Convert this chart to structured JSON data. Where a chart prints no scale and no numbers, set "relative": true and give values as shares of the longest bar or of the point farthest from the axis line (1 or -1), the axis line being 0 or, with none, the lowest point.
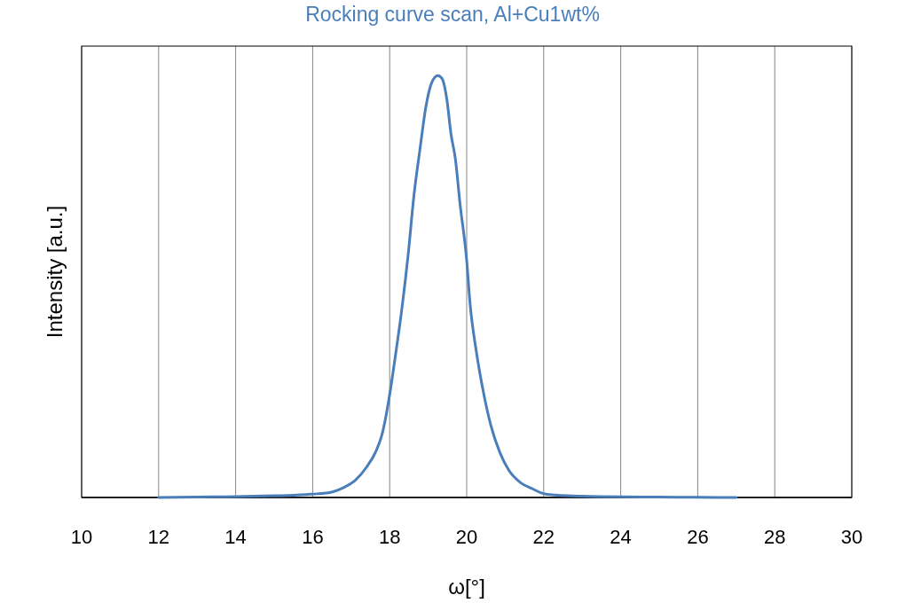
{
  "chart_data": {
    "type": "line",
    "title": "Rocking curve scan, Al+Cu1wt%",
    "xlabel": "ω[°]",
    "ylabel": "Intensity [a.u.]",
    "relative": true,
    "x": [
      12,
      13,
      14,
      15,
      15.5,
      16,
      16.4,
      16.79,
      17.1,
      17.4,
      17.63,
      17.8,
      18,
      18.13,
      18.33,
      18.48,
      18.63,
      18.79,
      18.94,
      19.09,
      19.25,
      19.36,
      19.49,
      19.59,
      19.71,
      19.82,
      20,
      20.09,
      20.24,
      20.44,
      20.63,
      20.86,
      21.09,
      21.4,
      21.7,
      22,
      22.3,
      22.63,
      23,
      24,
      25,
      26,
      27
    ],
    "series": [
      {
        "color": "#4a7ebb",
        "values": [
          0,
          0.001,
          0.002,
          0.004,
          0.005,
          0.008,
          0.011,
          0.023,
          0.04,
          0.072,
          0.107,
          0.149,
          0.244,
          0.324,
          0.457,
          0.576,
          0.716,
          0.828,
          0.926,
          0.983,
          1,
          0.993,
          0.94,
          0.863,
          0.8,
          0.702,
          0.562,
          0.457,
          0.352,
          0.247,
          0.17,
          0.107,
          0.065,
          0.035,
          0.021,
          0.009,
          0.006,
          0.004,
          0.003,
          0.0015,
          0.001,
          0.0005,
          0
        ]
      }
    ],
    "xlim": [
      10,
      30
    ],
    "xticks": [
      10,
      12,
      14,
      16,
      18,
      20,
      22,
      24,
      26,
      28,
      30
    ],
    "grid": "x",
    "line_style": "solid"
  }
}
